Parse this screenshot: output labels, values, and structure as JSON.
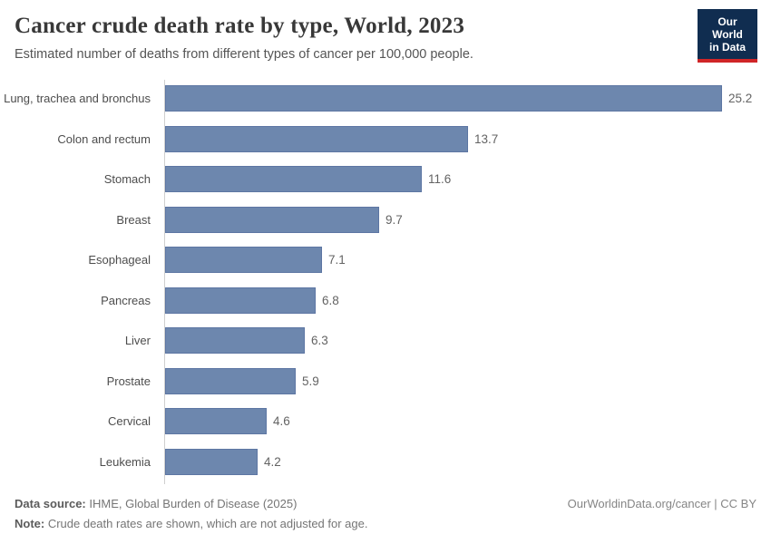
{
  "header": {
    "title": "Cancer crude death rate by type, World, 2023",
    "subtitle": "Estimated number of deaths from different types of cancer per 100,000 people.",
    "logo": {
      "line1": "Our World",
      "line2": "in Data"
    }
  },
  "chart_data": {
    "type": "bar",
    "orientation": "horizontal",
    "title": "Cancer crude death rate by type, World, 2023",
    "xlabel": "",
    "ylabel": "",
    "categories": [
      "Lung, trachea and bronchus",
      "Colon and rectum",
      "Stomach",
      "Breast",
      "Esophageal",
      "Pancreas",
      "Liver",
      "Prostate",
      "Cervical",
      "Leukemia"
    ],
    "values": [
      25.2,
      13.7,
      11.6,
      9.7,
      7.1,
      6.8,
      6.3,
      5.9,
      4.6,
      4.2
    ],
    "value_labels": [
      "25.2",
      "13.7",
      "11.6",
      "9.7",
      "7.1",
      "6.8",
      "6.3",
      "5.9",
      "4.6",
      "4.2"
    ],
    "xlim": [
      0,
      25.2
    ],
    "grid": false,
    "legend": "none",
    "bar_color": "#6d87ae"
  },
  "footer": {
    "source_label": "Data source:",
    "source_text": " IHME, Global Burden of Disease (2025)",
    "note_label": "Note:",
    "note_text": " Crude death rates are shown, which are not adjusted for age.",
    "credit": "OurWorldinData.org/cancer | CC BY"
  }
}
